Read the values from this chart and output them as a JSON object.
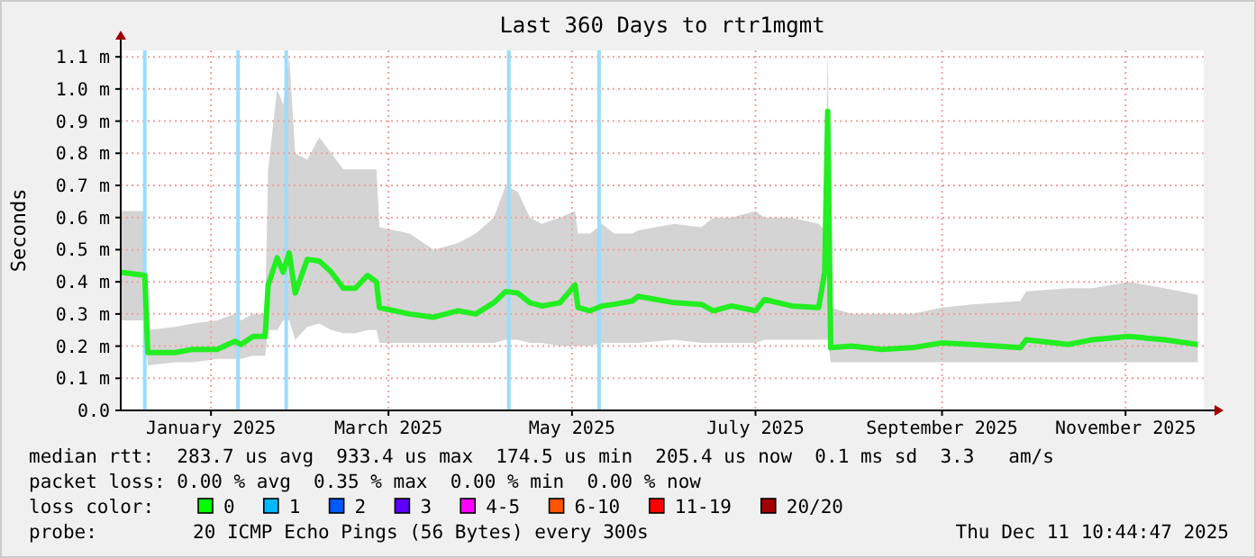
{
  "chart_data": {
    "type": "line",
    "title": "Last 360 Days to rtr1mgmt",
    "ylabel": "Seconds",
    "x": [
      "2024-12-16",
      "2024-12-24",
      "2024-12-25",
      "2025-01-03",
      "2025-01-09",
      "2025-01-17",
      "2025-01-23",
      "2025-01-25",
      "2025-01-29",
      "2025-02-02",
      "2025-02-03",
      "2025-02-06",
      "2025-02-08",
      "2025-02-10",
      "2025-02-12",
      "2025-02-16",
      "2025-02-20",
      "2025-02-24",
      "2025-02-28",
      "2025-03-04",
      "2025-03-08",
      "2025-03-11",
      "2025-03-12",
      "2025-03-22",
      "2025-03-30",
      "2025-04-07",
      "2025-04-13",
      "2025-04-19",
      "2025-04-23",
      "2025-04-27",
      "2025-05-01",
      "2025-05-05",
      "2025-05-11",
      "2025-05-16",
      "2025-05-17",
      "2025-05-21",
      "2025-05-25",
      "2025-05-29",
      "2025-06-04",
      "2025-06-06",
      "2025-06-18",
      "2025-06-27",
      "2025-07-01",
      "2025-07-07",
      "2025-07-15",
      "2025-07-18",
      "2025-07-27",
      "2025-08-05",
      "2025-08-07",
      "2025-08-08",
      "2025-08-09",
      "2025-08-16",
      "2025-08-26",
      "2025-09-05",
      "2025-09-15",
      "2025-09-25",
      "2025-10-11",
      "2025-10-13",
      "2025-10-27",
      "2025-11-04",
      "2025-11-16",
      "2025-11-28",
      "2025-12-09"
    ],
    "series": [
      {
        "color": "#22ee22",
        "values": [
          0.43,
          0.42,
          0.18,
          0.18,
          0.19,
          0.19,
          0.215,
          0.205,
          0.23,
          0.23,
          0.39,
          0.475,
          0.43,
          0.49,
          0.365,
          0.47,
          0.465,
          0.43,
          0.38,
          0.38,
          0.42,
          0.4,
          0.32,
          0.3,
          0.29,
          0.31,
          0.3,
          0.335,
          0.37,
          0.365,
          0.335,
          0.325,
          0.335,
          0.39,
          0.32,
          0.31,
          0.325,
          0.33,
          0.34,
          0.355,
          0.335,
          0.33,
          0.31,
          0.325,
          0.31,
          0.345,
          0.325,
          0.32,
          0.43,
          0.93,
          0.195,
          0.2,
          0.19,
          0.195,
          0.21,
          0.205,
          0.195,
          0.22,
          0.205,
          0.22,
          0.23,
          0.22,
          0.205
        ],
        "lower": [
          0.28,
          0.28,
          0.14,
          0.15,
          0.15,
          0.16,
          0.16,
          0.16,
          0.17,
          0.17,
          0.25,
          0.25,
          0.28,
          0.28,
          0.22,
          0.26,
          0.27,
          0.25,
          0.24,
          0.24,
          0.25,
          0.25,
          0.21,
          0.21,
          0.21,
          0.21,
          0.21,
          0.21,
          0.22,
          0.22,
          0.21,
          0.21,
          0.2,
          0.2,
          0.2,
          0.2,
          0.21,
          0.21,
          0.21,
          0.21,
          0.22,
          0.21,
          0.21,
          0.21,
          0.21,
          0.22,
          0.22,
          0.22,
          0.22,
          0.22,
          0.15,
          0.15,
          0.15,
          0.15,
          0.15,
          0.15,
          0.15,
          0.15,
          0.15,
          0.15,
          0.15,
          0.15,
          0.15
        ],
        "upper": [
          0.62,
          0.62,
          0.25,
          0.26,
          0.27,
          0.28,
          0.3,
          0.28,
          0.3,
          0.3,
          0.75,
          1.0,
          0.95,
          1.1,
          0.8,
          0.78,
          0.85,
          0.8,
          0.75,
          0.75,
          0.75,
          0.75,
          0.57,
          0.55,
          0.5,
          0.52,
          0.55,
          0.6,
          0.7,
          0.68,
          0.6,
          0.58,
          0.6,
          0.62,
          0.55,
          0.55,
          0.58,
          0.55,
          0.55,
          0.56,
          0.58,
          0.57,
          0.6,
          0.6,
          0.62,
          0.6,
          0.6,
          0.58,
          0.56,
          1.12,
          0.32,
          0.3,
          0.3,
          0.3,
          0.32,
          0.33,
          0.34,
          0.37,
          0.38,
          0.38,
          0.4,
          0.38,
          0.36
        ]
      }
    ],
    "xlim": [
      "2024-12-16",
      "2025-12-11"
    ],
    "xticks": [
      {
        "value": "2025-01-15",
        "label": "January 2025"
      },
      {
        "value": "2025-03-15",
        "label": "March 2025"
      },
      {
        "value": "2025-05-15",
        "label": "May 2025"
      },
      {
        "value": "2025-07-15",
        "label": "July 2025"
      },
      {
        "value": "2025-09-15",
        "label": "September 2025"
      },
      {
        "value": "2025-11-15",
        "label": "November 2025"
      }
    ],
    "ylim": [
      0,
      1.12
    ],
    "yticks": [
      {
        "value": 0,
        "label": "0.0"
      },
      {
        "value": 0.1,
        "label": "0.1 m"
      },
      {
        "value": 0.2,
        "label": "0.2 m"
      },
      {
        "value": 0.3,
        "label": "0.3 m"
      },
      {
        "value": 0.4,
        "label": "0.4 m"
      },
      {
        "value": 0.5,
        "label": "0.5 m"
      },
      {
        "value": 0.6,
        "label": "0.6 m"
      },
      {
        "value": 0.7,
        "label": "0.7 m"
      },
      {
        "value": 0.8,
        "label": "0.8 m"
      },
      {
        "value": 0.9,
        "label": "0.9 m"
      },
      {
        "value": 1.0,
        "label": "1.0 m"
      },
      {
        "value": 1.1,
        "label": "1.1 m"
      }
    ],
    "grid": true,
    "ref_lines": [
      {
        "axis": "x",
        "value": "2024-12-24",
        "color": "#99ddff"
      },
      {
        "axis": "x",
        "value": "2025-01-24",
        "color": "#99ddff"
      },
      {
        "axis": "x",
        "value": "2025-02-09",
        "color": "#99ddff"
      },
      {
        "axis": "x",
        "value": "2025-04-24",
        "color": "#99ddff"
      },
      {
        "axis": "x",
        "value": "2025-05-24",
        "color": "#99ddff"
      }
    ],
    "annotations": [
      "median rtt:  283.7 us avg  933.4 us max  174.5 us min  205.4 us now  0.1 ms sd  3.3   am/s",
      "packet loss: 0.00 % avg  0.35 % max  0.00 % min  0.00 % now",
      "loss color:",
      "0",
      "1",
      "2",
      "3",
      "4-5",
      "6-10",
      "11-19",
      "20/20",
      "probe:",
      "20 ICMP Echo Pings (56 Bytes) every 300s",
      "Thu Dec 11 10:44:47 2025"
    ]
  }
}
